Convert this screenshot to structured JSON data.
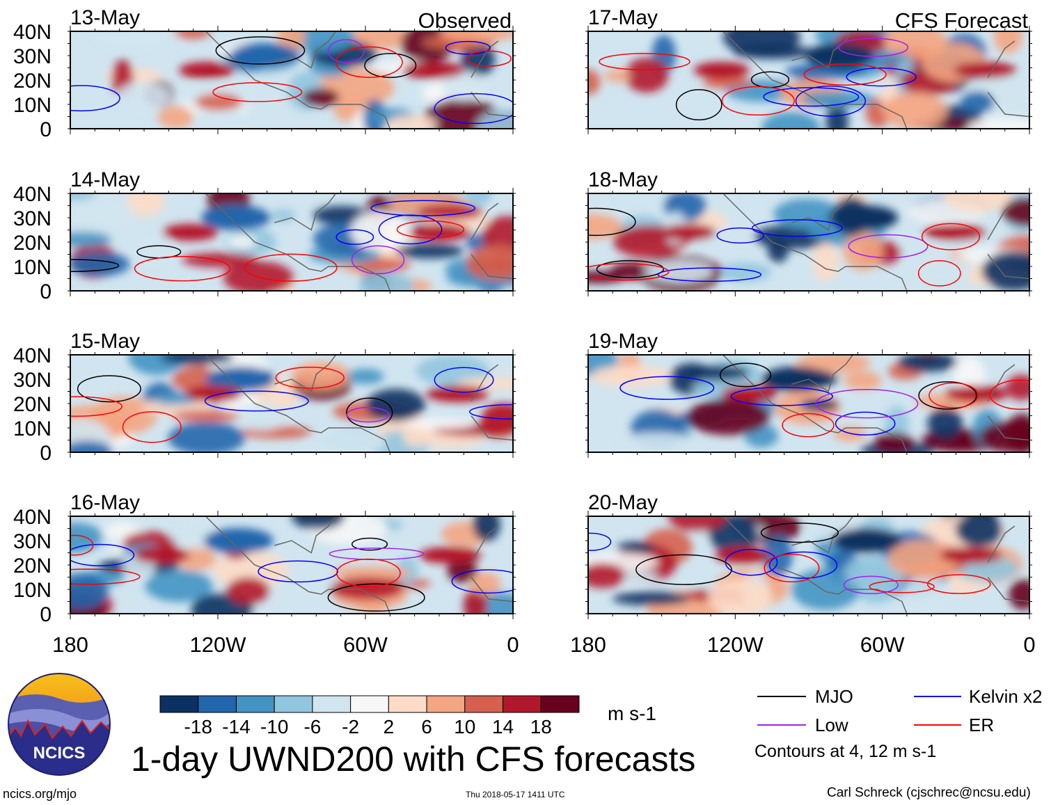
{
  "chart_data": {
    "type": "heatmap",
    "title": "1-day UWND200 with CFS forecasts",
    "units": "m s-1",
    "panel_titles": {
      "left": "Observed",
      "right": "CFS Forecast"
    },
    "panels": [
      {
        "date": "13-May",
        "column": "Observed"
      },
      {
        "date": "14-May",
        "column": "Observed"
      },
      {
        "date": "15-May",
        "column": "Observed"
      },
      {
        "date": "16-May",
        "column": "Observed"
      },
      {
        "date": "17-May",
        "column": "CFS Forecast"
      },
      {
        "date": "18-May",
        "column": "CFS Forecast"
      },
      {
        "date": "19-May",
        "column": "CFS Forecast"
      },
      {
        "date": "20-May",
        "column": "CFS Forecast"
      }
    ],
    "y_ticks": [
      "40N",
      "30N",
      "20N",
      "10N",
      "0"
    ],
    "x_ticks": [
      "180",
      "120W",
      "60W",
      "0"
    ],
    "xlim": [
      -180,
      0
    ],
    "ylim": [
      0,
      40
    ],
    "colorbar": {
      "levels": [
        "-18",
        "-14",
        "-10",
        "-6",
        "-2",
        "2",
        "6",
        "10",
        "14",
        "18"
      ],
      "colors": [
        "#0a3161",
        "#2166ac",
        "#4393c3",
        "#92c5de",
        "#d1e5f0",
        "#f7f7f7",
        "#fddbc7",
        "#f4a582",
        "#d6604d",
        "#b2182b",
        "#67001f"
      ]
    },
    "legend": [
      {
        "label": "MJO",
        "color": "#000000"
      },
      {
        "label": "Kelvin x2",
        "color": "#0000ff"
      },
      {
        "label": "Low",
        "color": "#a020f0"
      },
      {
        "label": "ER",
        "color": "#ff0000"
      }
    ],
    "contour_note": "Contours at 4, 12 m s-1"
  },
  "footer": {
    "url": "ncics.org/mjo",
    "timestamp": "Thu 2018-05-17 1411 UTC",
    "author": "Carl Schreck (cjschrec@ncsu.edu)",
    "logo_text": "NCICS"
  }
}
